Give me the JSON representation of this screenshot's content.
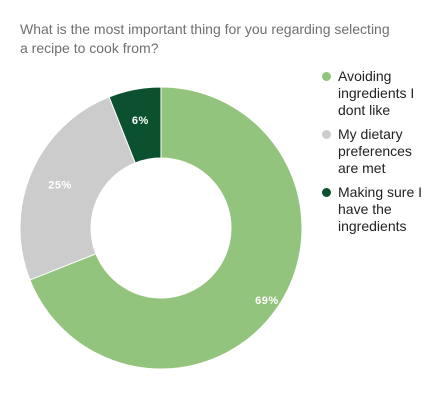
{
  "title_lines": [
    "What is the most important thing for you regarding selecting",
    "a recipe to cook from?"
  ],
  "chart_data": {
    "type": "pie",
    "title": "What is the most important thing for you regarding selecting a recipe to cook from?",
    "donut": true,
    "legend_position": "right",
    "categories": [
      "Avoiding ingredients I dont like",
      "My dietary preferences are met",
      "Making sure I have the ingredients"
    ],
    "values": [
      69,
      25,
      6
    ],
    "value_labels": [
      "69%",
      "25%",
      "6%"
    ],
    "legend_lines": [
      [
        "Avoiding",
        "ingredients I",
        "dont like"
      ],
      [
        "My dietary",
        "preferences",
        "are met"
      ],
      [
        "Making sure I",
        "have the",
        "ingredients"
      ]
    ],
    "colors": [
      "#93c47d",
      "#cccccc",
      "#0b5130"
    ]
  }
}
